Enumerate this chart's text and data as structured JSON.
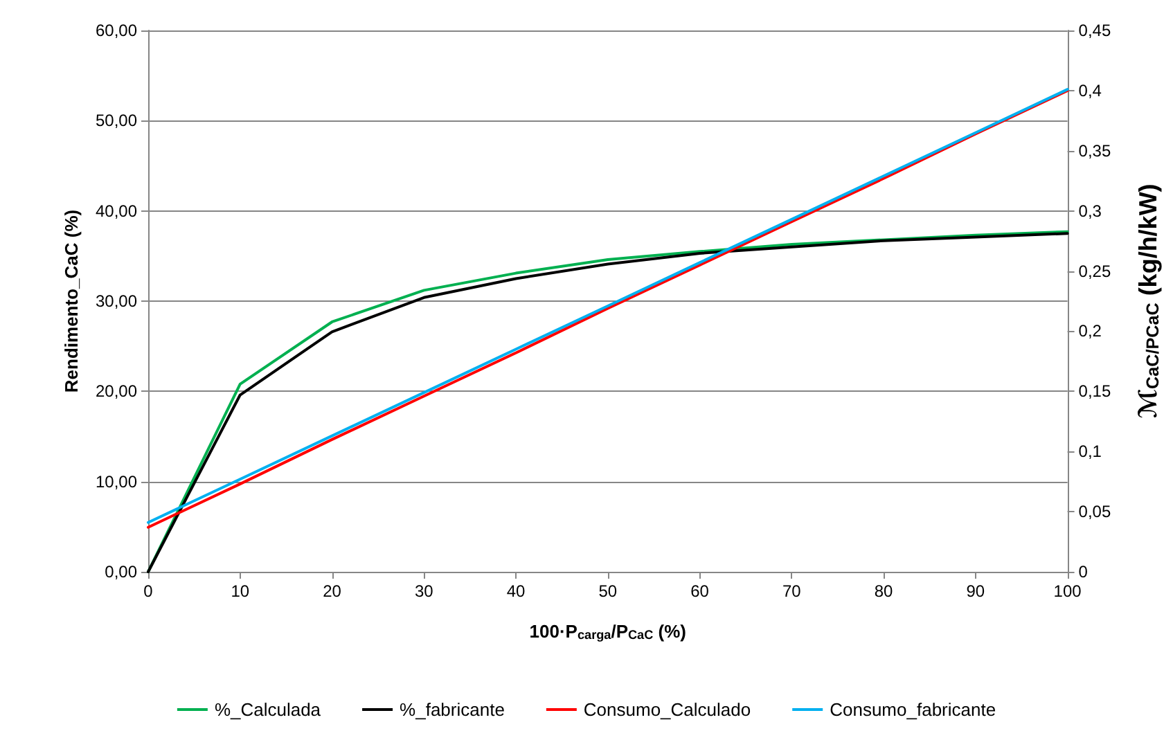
{
  "chart_data": {
    "type": "line",
    "xlabel": "100·P$_{carga}$/P$_{CaC}$ (%)",
    "ylabel": "Rendimento_CaC (%)",
    "y2label": "ℳ$_{CaC/PCaC}$ (kg/h/kW)",
    "x": [
      0,
      10,
      20,
      30,
      40,
      50,
      60,
      70,
      80,
      90,
      100
    ],
    "series": [
      {
        "name": "%_Calculada",
        "color": "#00b050",
        "values": [
          0,
          20.8,
          27.7,
          31.2,
          33.1,
          34.6,
          35.5,
          36.3,
          36.8,
          37.3,
          37.7
        ]
      },
      {
        "name": "%_fabricante",
        "color": "#000000",
        "values": [
          0,
          19.6,
          26.6,
          30.4,
          32.5,
          34.1,
          35.3,
          36.0,
          36.7,
          37.1,
          37.5
        ]
      },
      {
        "name": "Consumo_Calculado",
        "color": "#ff0000",
        "axis": "y2",
        "values": [
          0.037,
          0.073,
          0.11,
          0.146,
          0.182,
          0.219,
          0.255,
          0.291,
          0.327,
          0.364,
          0.4
        ]
      },
      {
        "name": "Consumo_fabricante",
        "color": "#00b0f0",
        "axis": "y2",
        "values": [
          0.041,
          0.077,
          0.113,
          0.149,
          0.185,
          0.221,
          0.257,
          0.293,
          0.329,
          0.365,
          0.401
        ]
      }
    ],
    "xlim": [
      0,
      100
    ],
    "xticks": [
      0,
      10,
      20,
      30,
      40,
      50,
      60,
      70,
      80,
      90,
      100
    ],
    "ylim": [
      0,
      60
    ],
    "yticks": [
      {
        "value": 0,
        "label": "0,00"
      },
      {
        "value": 10,
        "label": "10,00"
      },
      {
        "value": 20,
        "label": "20,00"
      },
      {
        "value": 30,
        "label": "30,00"
      },
      {
        "value": 40,
        "label": "40,00"
      },
      {
        "value": 50,
        "label": "50,00"
      },
      {
        "value": 60,
        "label": "60,00"
      }
    ],
    "y2lim": [
      0,
      0.45
    ],
    "y2ticks": [
      0,
      {
        "value": 0.05,
        "label": "0,05"
      },
      {
        "value": 0.1,
        "label": "0,1"
      },
      {
        "value": 0.15,
        "label": "0,15"
      },
      {
        "value": 0.2,
        "label": "0,2"
      },
      {
        "value": 0.25,
        "label": "0,25"
      },
      {
        "value": 0.3,
        "label": "0,3"
      },
      {
        "value": 0.35,
        "label": "0,35"
      },
      {
        "value": 0.4,
        "label": "0,4"
      },
      {
        "value": 0.45,
        "label": "0,45"
      }
    ],
    "grid": "y",
    "legend": "bottom",
    "marker": "none",
    "line_style": "solid"
  }
}
